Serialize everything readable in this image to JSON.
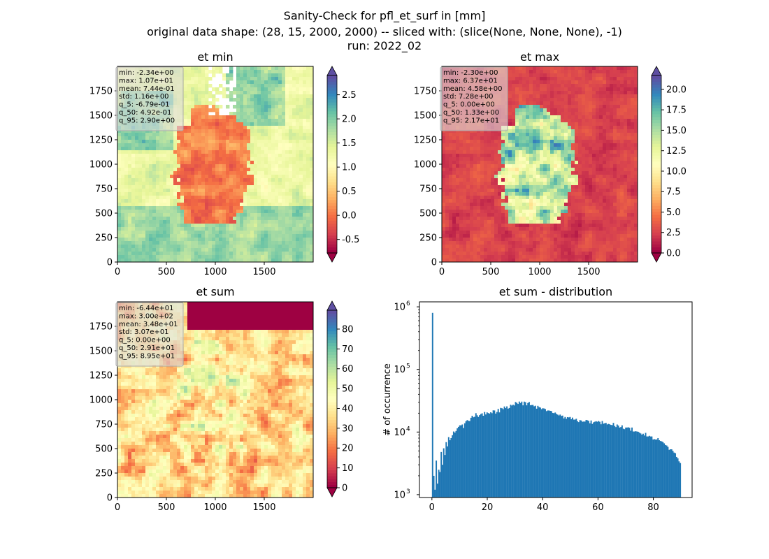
{
  "figure": {
    "title_lines": [
      "Sanity-Check for pfl_et_surf in [mm]",
      "original data shape: (28, 15, 2000, 2000) -- sliced with: (slice(None, None, None), -1)",
      "run: 2022_02"
    ]
  },
  "colors": {
    "colormap": [
      "#9e0142",
      "#d53e4f",
      "#f46d43",
      "#fdae61",
      "#fee08b",
      "#ffffbf",
      "#e6f598",
      "#abdda4",
      "#66c2a5",
      "#3288bd",
      "#5e4fa2"
    ],
    "histogram_bar": "#1f77b4",
    "stats_box_bg": "#dcdcdc"
  },
  "chart_data": [
    {
      "type": "heatmap",
      "title": "et min",
      "colormap": "Spectral",
      "extend": "both",
      "xlim": [
        0,
        2000
      ],
      "ylim": [
        0,
        2000
      ],
      "xticks": [
        0,
        500,
        1000,
        1500
      ],
      "yticks": [
        0,
        250,
        500,
        750,
        1000,
        1250,
        1500,
        1750
      ],
      "clim": [
        -0.78,
        2.9
      ],
      "colorbar_ticks": [
        "-0.5",
        "0.0",
        "0.5",
        "1.0",
        "1.5",
        "2.0",
        "2.5"
      ],
      "colorbar_tick_values": [
        -0.5,
        0.0,
        0.5,
        1.0,
        1.5,
        2.0,
        2.5
      ],
      "stats": [
        "min: -2.34e+00",
        "max: 1.07e+01",
        "mean: 7.44e-01",
        "std: 1.16e+00",
        "q_5: -6.79e-01",
        "q_50: 4.92e-01",
        "q_95: 2.90e+00"
      ]
    },
    {
      "type": "heatmap",
      "title": "et max",
      "colormap": "Spectral",
      "extend": "both",
      "xlim": [
        0,
        2000
      ],
      "ylim": [
        0,
        2000
      ],
      "xticks": [
        0,
        500,
        1000,
        1500
      ],
      "yticks": [
        0,
        250,
        500,
        750,
        1000,
        1250,
        1500,
        1750
      ],
      "clim": [
        0,
        21.7
      ],
      "colorbar_ticks": [
        "0.0",
        "2.5",
        "5.0",
        "7.5",
        "10.0",
        "12.5",
        "15.0",
        "17.5",
        "20.0"
      ],
      "colorbar_tick_values": [
        0,
        2.5,
        5.0,
        7.5,
        10.0,
        12.5,
        15.0,
        17.5,
        20.0
      ],
      "stats": [
        "min: -2.30e+00",
        "max: 6.37e+01",
        "mean: 4.58e+00",
        "std: 7.28e+00",
        "q_5: 0.00e+00",
        "q_50: 1.33e+00",
        "q_95: 2.17e+01"
      ]
    },
    {
      "type": "heatmap",
      "title": "et sum",
      "colormap": "Spectral",
      "extend": "both",
      "xlim": [
        0,
        2000
      ],
      "ylim": [
        0,
        2000
      ],
      "xticks": [
        0,
        500,
        1000,
        1500
      ],
      "yticks": [
        0,
        250,
        500,
        750,
        1000,
        1250,
        1500,
        1750
      ],
      "clim": [
        0,
        89.5
      ],
      "colorbar_ticks": [
        "0",
        "10",
        "20",
        "30",
        "40",
        "50",
        "60",
        "70",
        "80"
      ],
      "colorbar_tick_values": [
        0,
        10,
        20,
        30,
        40,
        50,
        60,
        70,
        80
      ],
      "stats": [
        "min: -6.44e+01",
        "max: 3.00e+02",
        "mean: 3.48e+01",
        "std: 3.07e+01",
        "q_5: 0.00e+00",
        "q_50: 2.91e+01",
        "q_95: 8.95e+01"
      ]
    },
    {
      "type": "bar",
      "title": "et sum - distribution",
      "ylabel": "# of occurrence",
      "yscale": "log",
      "xlim": [
        -4.5,
        94
      ],
      "ylim": [
        900,
        1200000
      ],
      "xticks": [
        0,
        20,
        40,
        60,
        80
      ],
      "yticks": [
        1000,
        10000,
        100000,
        1000000
      ],
      "ytick_exponents": [
        "3",
        "4",
        "5",
        "6"
      ],
      "bin_start": 0,
      "bin_width": 0.4475,
      "values": [
        800000,
        2000,
        1200,
        3500,
        1500,
        2500,
        2300,
        4800,
        3000,
        5500,
        4300,
        6900,
        5900,
        8300,
        7400,
        8000,
        8900,
        10200,
        9800,
        10400,
        11500,
        12100,
        12800,
        12800,
        13200,
        11600,
        13800,
        14900,
        15500,
        15100,
        15000,
        16900,
        18200,
        17200,
        17500,
        20000,
        18500,
        17400,
        18600,
        19400,
        19900,
        18200,
        20900,
        19100,
        20600,
        20100,
        19700,
        20700,
        20000,
        22200,
        22100,
        19700,
        20900,
        23400,
        20600,
        24300,
        24000,
        23200,
        25600,
        24100,
        25700,
        23600,
        24200,
        27300,
        26500,
        27300,
        26600,
        30200,
        29200,
        28100,
        30700,
        29100,
        30600,
        26700,
        30600,
        30000,
        26700,
        29100,
        30200,
        26800,
        27000,
        27100,
        25800,
        26300,
        23600,
        26200,
        25000,
        24600,
        23200,
        24000,
        23800,
        23300,
        21600,
        22100,
        22100,
        21800,
        21600,
        20200,
        20000,
        20500,
        19500,
        19000,
        18400,
        19000,
        18100,
        18300,
        16500,
        17400,
        16300,
        17300,
        17100,
        17400,
        16100,
        17000,
        15800,
        15800,
        16300,
        14900,
        14400,
        15500,
        15300,
        14600,
        14700,
        14700,
        15600,
        15400,
        15100,
        13800,
        15300,
        13500,
        14300,
        14600,
        14900,
        14600,
        15000,
        14600,
        13300,
        15000,
        13600,
        13800,
        14000,
        13200,
        13500,
        13300,
        13000,
        12900,
        14000,
        12500,
        12000,
        13200,
        12700,
        11800,
        12000,
        12800,
        11300,
        11100,
        11800,
        11800,
        11900,
        11700,
        10500,
        11800,
        10200,
        10200,
        10300,
        10200,
        10100,
        9800,
        9500,
        9100,
        9400,
        8800,
        9700,
        8500,
        8500,
        8700,
        8500,
        8500,
        7600,
        7700,
        7600,
        7600,
        8000,
        7400,
        7200,
        7100,
        6900,
        6600,
        6200,
        6100,
        5800,
        5200,
        5300,
        5300,
        5000,
        4700,
        4600,
        4000,
        3800,
        3400,
        3200
      ]
    }
  ]
}
